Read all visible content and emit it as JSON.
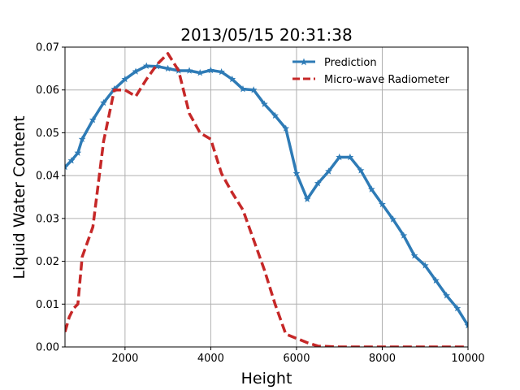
{
  "chart_data": {
    "type": "line",
    "title": "2013/05/15 20:31:38",
    "xlabel": "Height",
    "ylabel": "Liquid Water Content",
    "xlim": [
      600,
      10000
    ],
    "ylim": [
      0,
      0.07
    ],
    "xticks": [
      2000,
      4000,
      6000,
      8000,
      10000
    ],
    "yticks": [
      0.0,
      0.01,
      0.02,
      0.03,
      0.04,
      0.05,
      0.06,
      0.07
    ],
    "xtick_labels": [
      "2000",
      "4000",
      "6000",
      "8000",
      "10000"
    ],
    "ytick_labels": [
      "0.00",
      "0.01",
      "0.02",
      "0.03",
      "0.04",
      "0.05",
      "0.06",
      "0.07"
    ],
    "grid": true,
    "legend_position": "top-right",
    "series": [
      {
        "name": "Prediction",
        "color": "#2e7bb6",
        "style": "solid",
        "marker": "star",
        "x": [
          600,
          750,
          900,
          1000,
          1250,
          1500,
          1750,
          2000,
          2250,
          2500,
          2750,
          3000,
          3250,
          3500,
          3750,
          4000,
          4250,
          4500,
          4750,
          5000,
          5250,
          5500,
          5750,
          6000,
          6250,
          6500,
          6750,
          7000,
          7250,
          7500,
          7750,
          8000,
          8250,
          8500,
          8750,
          9000,
          9250,
          9500,
          9750,
          10000
        ],
        "y": [
          0.042,
          0.0435,
          0.0453,
          0.0485,
          0.053,
          0.057,
          0.0602,
          0.0625,
          0.0643,
          0.0656,
          0.0655,
          0.065,
          0.0645,
          0.0645,
          0.064,
          0.0646,
          0.0642,
          0.0625,
          0.0602,
          0.06,
          0.0567,
          0.054,
          0.051,
          0.0405,
          0.0345,
          0.0382,
          0.041,
          0.0443,
          0.0443,
          0.0412,
          0.0368,
          0.0333,
          0.0298,
          0.026,
          0.0213,
          0.019,
          0.0155,
          0.012,
          0.009,
          0.005
        ]
      },
      {
        "name": "Micro-wave Radiometer",
        "color": "#c62828",
        "style": "dashed",
        "marker": "none",
        "x": [
          600,
          700,
          800,
          900,
          1000,
          1250,
          1500,
          1750,
          2000,
          2250,
          2500,
          2750,
          3000,
          3250,
          3500,
          3750,
          4000,
          4250,
          4500,
          4750,
          5000,
          5250,
          5500,
          5750,
          6000,
          6250,
          6500,
          7000,
          8000,
          9000,
          10000
        ],
        "y": [
          0.0035,
          0.007,
          0.009,
          0.01,
          0.021,
          0.028,
          0.048,
          0.06,
          0.06,
          0.0585,
          0.0625,
          0.066,
          0.0685,
          0.0645,
          0.0545,
          0.05,
          0.0485,
          0.0405,
          0.036,
          0.032,
          0.025,
          0.018,
          0.01,
          0.003,
          0.002,
          0.001,
          0.0002,
          0.0,
          0.0,
          0.0,
          0.0
        ]
      }
    ]
  }
}
